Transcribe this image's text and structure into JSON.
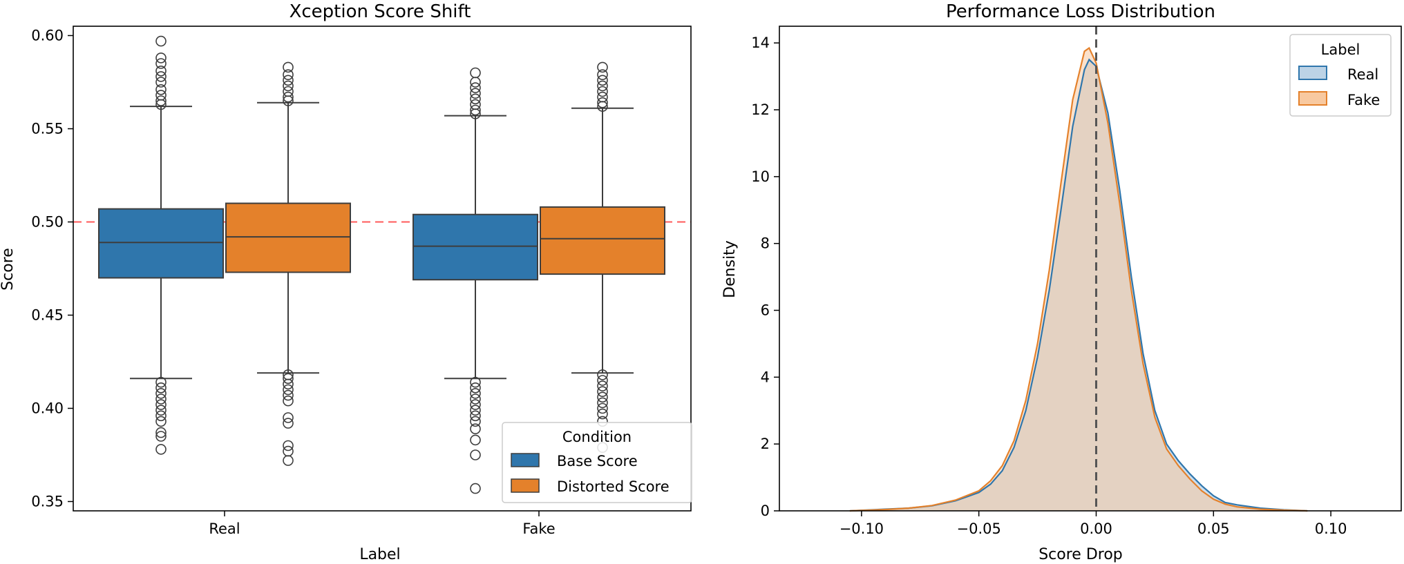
{
  "chart_data": [
    {
      "type": "box",
      "title": "Xception Score Shift",
      "xlabel": "Label",
      "ylabel": "Score",
      "categories": [
        "Real",
        "Fake"
      ],
      "ylim": [
        0.345,
        0.605
      ],
      "yticks": [
        0.35,
        0.4,
        0.45,
        0.5,
        0.55,
        0.6
      ],
      "ytick_labels": [
        "0.35",
        "0.40",
        "0.45",
        "0.50",
        "0.55",
        "0.60"
      ],
      "reference_line": {
        "y": 0.5,
        "color": "#ff3b3b",
        "style": "dashed"
      },
      "legend": {
        "title": "Condition",
        "placement": "lower-right"
      },
      "series": [
        {
          "name": "Base Score",
          "color": "#2f76ac",
          "boxes": [
            {
              "category": "Real",
              "q1": 0.47,
              "median": 0.489,
              "q3": 0.507,
              "whisker_low": 0.416,
              "whisker_high": 0.562,
              "outliers": [
                0.597,
                0.588,
                0.585,
                0.581,
                0.578,
                0.575,
                0.571,
                0.568,
                0.565,
                0.563,
                0.414,
                0.411,
                0.408,
                0.405,
                0.402,
                0.399,
                0.396,
                0.393,
                0.387,
                0.385,
                0.378
              ]
            },
            {
              "category": "Fake",
              "q1": 0.469,
              "median": 0.487,
              "q3": 0.504,
              "whisker_low": 0.416,
              "whisker_high": 0.557,
              "outliers": [
                0.58,
                0.575,
                0.572,
                0.569,
                0.566,
                0.563,
                0.56,
                0.558,
                0.414,
                0.411,
                0.408,
                0.405,
                0.402,
                0.399,
                0.396,
                0.393,
                0.389,
                0.383,
                0.375,
                0.357
              ]
            }
          ]
        },
        {
          "name": "Distorted Score",
          "color": "#e4812b",
          "boxes": [
            {
              "category": "Real",
              "q1": 0.473,
              "median": 0.492,
              "q3": 0.51,
              "whisker_low": 0.419,
              "whisker_high": 0.564,
              "outliers": [
                0.583,
                0.579,
                0.576,
                0.573,
                0.57,
                0.567,
                0.565,
                0.418,
                0.416,
                0.413,
                0.41,
                0.407,
                0.404,
                0.395,
                0.392,
                0.38,
                0.377,
                0.372
              ]
            },
            {
              "category": "Fake",
              "q1": 0.472,
              "median": 0.491,
              "q3": 0.508,
              "whisker_low": 0.419,
              "whisker_high": 0.561,
              "outliers": [
                0.583,
                0.579,
                0.576,
                0.573,
                0.57,
                0.567,
                0.564,
                0.562,
                0.418,
                0.415,
                0.412,
                0.409,
                0.406,
                0.403,
                0.4,
                0.397,
                0.393,
                0.379
              ]
            }
          ]
        }
      ]
    },
    {
      "type": "area",
      "subtype": "kde",
      "title": "Performance Loss Distribution",
      "xlabel": "Score Drop",
      "ylabel": "Density",
      "xlim": [
        -0.135,
        0.13
      ],
      "ylim": [
        0,
        14.5
      ],
      "xticks": [
        -0.1,
        -0.05,
        0.0,
        0.05,
        0.1
      ],
      "xtick_labels": [
        "−0.10",
        "−0.05",
        "0.00",
        "0.05",
        "0.10"
      ],
      "yticks": [
        0,
        2,
        4,
        6,
        8,
        10,
        12,
        14
      ],
      "ytick_labels": [
        "0",
        "2",
        "4",
        "6",
        "8",
        "10",
        "12",
        "14"
      ],
      "reference_line": {
        "x": 0.0,
        "color": "#555555",
        "style": "dashed"
      },
      "legend": {
        "title": "Label",
        "placement": "top-right"
      },
      "x": [
        -0.105,
        -0.09,
        -0.08,
        -0.07,
        -0.06,
        -0.05,
        -0.045,
        -0.04,
        -0.035,
        -0.03,
        -0.025,
        -0.02,
        -0.015,
        -0.01,
        -0.005,
        -0.003,
        0.0,
        0.005,
        0.01,
        0.015,
        0.02,
        0.025,
        0.03,
        0.035,
        0.04,
        0.045,
        0.05,
        0.055,
        0.06,
        0.07,
        0.08,
        0.09
      ],
      "series": [
        {
          "name": "Real",
          "color": "#2f76ac",
          "fill": "#bcd3e6",
          "values": [
            0.0,
            0.05,
            0.08,
            0.15,
            0.3,
            0.55,
            0.8,
            1.2,
            1.9,
            3.0,
            4.6,
            6.6,
            9.0,
            11.5,
            13.2,
            13.5,
            13.3,
            11.9,
            9.6,
            7.0,
            4.7,
            3.0,
            2.0,
            1.5,
            1.1,
            0.75,
            0.45,
            0.25,
            0.18,
            0.08,
            0.03,
            0.0
          ]
        },
        {
          "name": "Fake",
          "color": "#e4812b",
          "fill": "#f8c9a0",
          "values": [
            0.0,
            0.04,
            0.08,
            0.16,
            0.32,
            0.6,
            0.9,
            1.35,
            2.1,
            3.3,
            5.0,
            7.2,
            9.8,
            12.3,
            13.75,
            13.85,
            13.4,
            11.6,
            9.2,
            6.6,
            4.4,
            2.8,
            1.85,
            1.35,
            0.95,
            0.6,
            0.35,
            0.2,
            0.12,
            0.05,
            0.02,
            0.0
          ]
        }
      ]
    }
  ]
}
